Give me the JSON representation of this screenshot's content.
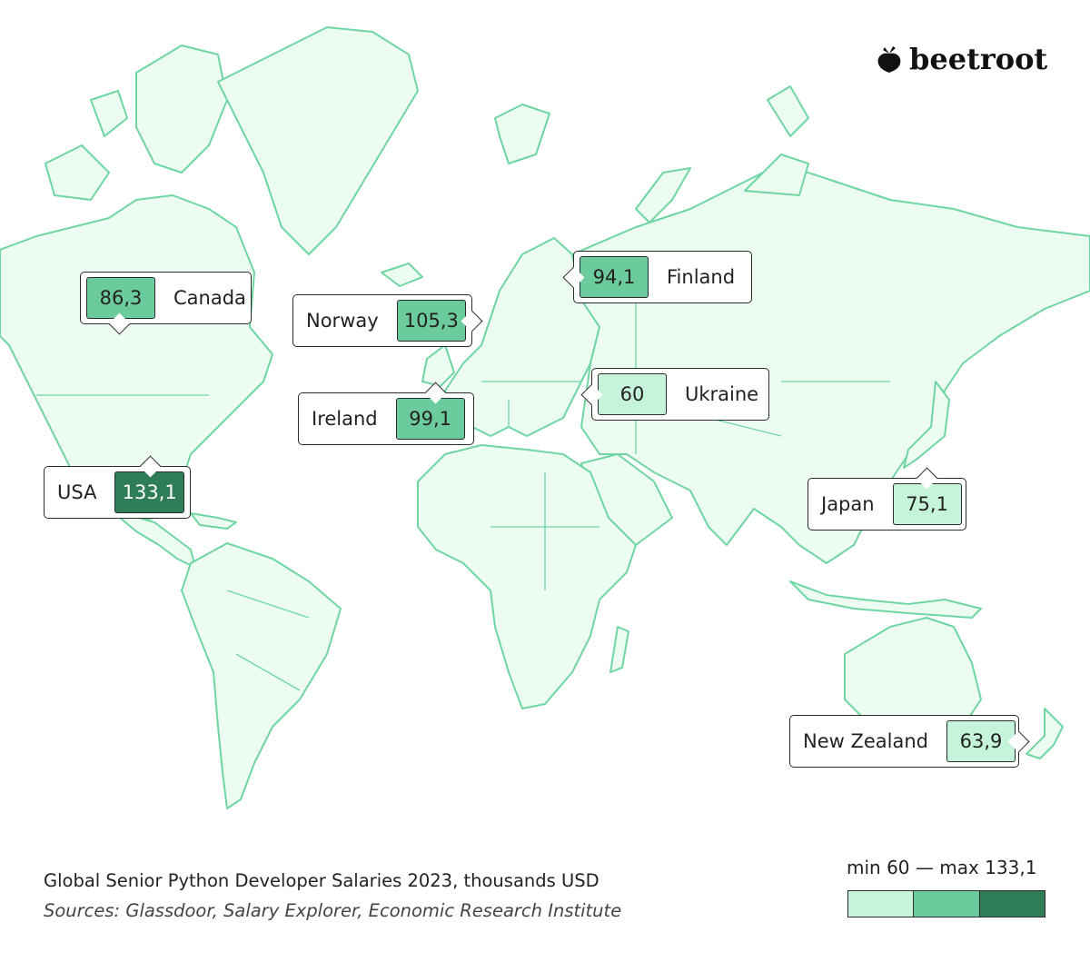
{
  "brand": {
    "name": "beetroot"
  },
  "title": "Global Senior Python Developer Salaries 2023, thousands USD",
  "sources": "Sources: Glassdoor, Salary Explorer, Economic Research Institute",
  "legend": {
    "text": "min 60 — max 133,1",
    "min": 60,
    "max": 133.1,
    "colors": [
      "#c6f4da",
      "#6ccb9c",
      "#2e7d56"
    ]
  },
  "colors": {
    "land_fill": "#ecfcf1",
    "land_stroke": "#6fd6a2"
  },
  "countries": [
    {
      "name": "Canada",
      "value": "86,3",
      "level": "mid"
    },
    {
      "name": "Norway",
      "value": "105,3",
      "level": "mid"
    },
    {
      "name": "Finland",
      "value": "94,1",
      "level": "mid"
    },
    {
      "name": "Ireland",
      "value": "99,1",
      "level": "mid"
    },
    {
      "name": "Ukraine",
      "value": "60",
      "level": "light"
    },
    {
      "name": "USA",
      "value": "133,1",
      "level": "dark"
    },
    {
      "name": "Japan",
      "value": "75,1",
      "level": "light"
    },
    {
      "name": "New Zealand",
      "value": "63,9",
      "level": "light"
    }
  ]
}
